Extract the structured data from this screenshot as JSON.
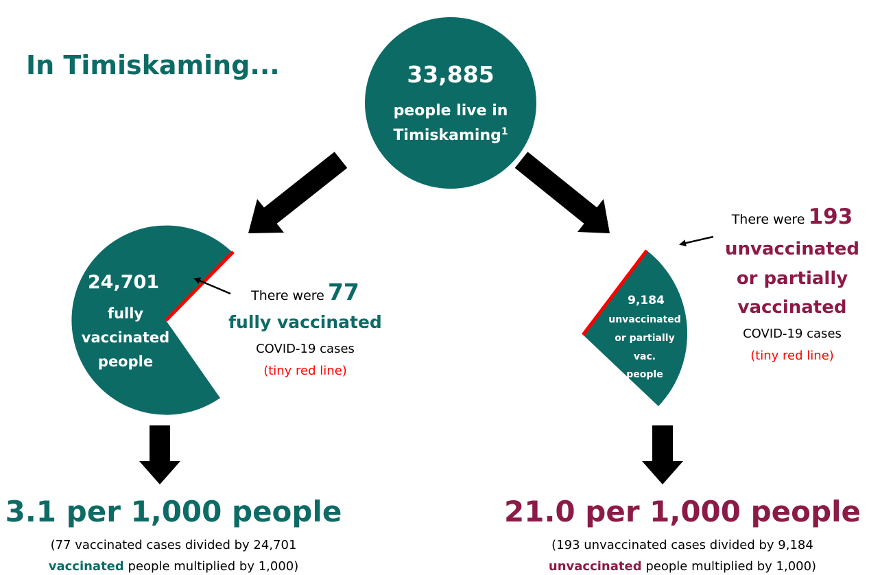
{
  "title": "In Timiskaming...",
  "population": {
    "number": "33,885",
    "lines": [
      "people live in",
      "Timiskaming"
    ],
    "footnote": "1"
  },
  "left": {
    "group": {
      "number": "24,701",
      "lines": [
        "fully",
        "vaccinated",
        "people"
      ]
    },
    "callout": {
      "prefix": "There were",
      "number": "77",
      "emphasis": [
        "fully vaccinated"
      ],
      "lines": [
        "COVID-19 cases"
      ],
      "note": "(tiny red line)"
    },
    "rate": "3.1 per 1,000 people",
    "explanation": {
      "line1": "(77 vaccinated cases divided by 24,701",
      "emphasis": "vaccinated",
      "rest": "people multiplied by 1,000)"
    }
  },
  "right": {
    "group": {
      "number": "9,184",
      "lines": [
        "unvaccinated",
        "or partially",
        "vac.",
        "people"
      ]
    },
    "callout": {
      "prefix": "There were",
      "number": "193",
      "emphasis": [
        "unvaccinated",
        "or partially",
        "vaccinated"
      ],
      "lines": [
        "COVID-19 cases"
      ],
      "note": "(tiny red line)"
    },
    "rate": "21.0 per 1,000 people",
    "explanation": {
      "line1": "(193 unvaccinated cases divided by 9,184",
      "emphasis": "unvaccinated",
      "rest": "people multiplied by 1,000)"
    }
  }
}
